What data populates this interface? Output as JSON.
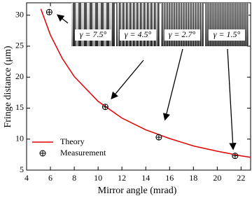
{
  "chart_data": {
    "type": "line",
    "x_label": "Mirror angle (mrad)",
    "y_label": "Fringe distance (μm)",
    "xlim": [
      4,
      22.8
    ],
    "ylim": [
      5,
      32
    ],
    "xticks": [
      4,
      6,
      8,
      10,
      12,
      14,
      16,
      18,
      20,
      22
    ],
    "yticks": [
      5,
      10,
      15,
      20,
      25,
      30
    ],
    "legend": "lower left",
    "series": [
      {
        "name": "Theory",
        "type": "line",
        "color": "#e00000",
        "x": [
          5.2,
          6,
          7,
          8,
          10,
          12,
          14,
          16,
          18,
          20,
          22,
          22.8
        ],
        "values": [
          31,
          26.8,
          23,
          20.1,
          16.1,
          13.4,
          11.5,
          10.1,
          8.9,
          8.05,
          7.3,
          7.06
        ]
      },
      {
        "name": "Measurement",
        "type": "scatter",
        "color": "#000000",
        "x": [
          5.9,
          10.6,
          15.1,
          21.5
        ],
        "values": [
          30.5,
          15.2,
          10.3,
          7.3
        ]
      }
    ],
    "insets": [
      "γ = 7.5°",
      "γ = 4.5°",
      "γ = 2.7°",
      "γ = 1.5°"
    ]
  }
}
